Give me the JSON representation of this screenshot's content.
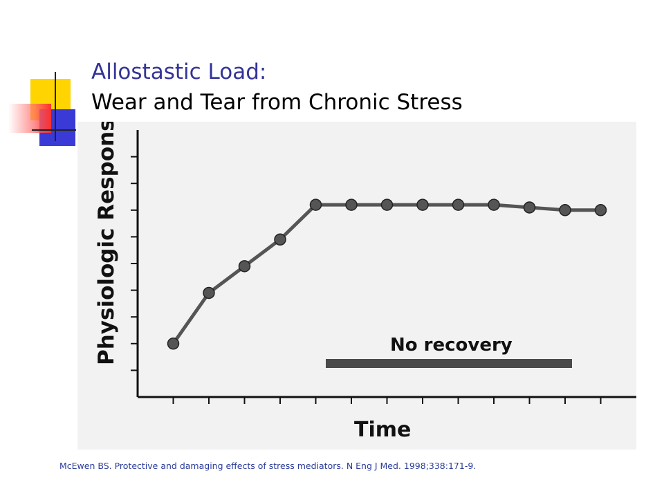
{
  "slide": {
    "title_line1": "Allostastic Load:",
    "title_line2": "Wear and Tear from Chronic Stress",
    "citation": "McEwen BS. Protective and damaging effects of stress mediators. N Eng J Med. 1998;338:171-9."
  },
  "chart_data": {
    "type": "line",
    "ylabel": "Physiologic Response",
    "xlabel": "Time",
    "annotation": "No recovery",
    "grid": false,
    "ylim": [
      0,
      10
    ],
    "xlim": [
      0,
      14
    ],
    "series": [
      {
        "x": [
          1,
          2,
          3,
          4,
          5,
          6,
          7,
          8,
          9,
          10,
          11,
          12,
          13
        ],
        "values": [
          2.0,
          3.9,
          4.9,
          5.9,
          7.2,
          7.2,
          7.2,
          7.2,
          7.2,
          7.2,
          7.1,
          7.0,
          7.0
        ]
      }
    ],
    "colors": {
      "line": "#555555",
      "marker": "#555555",
      "bar": "#444444"
    }
  }
}
